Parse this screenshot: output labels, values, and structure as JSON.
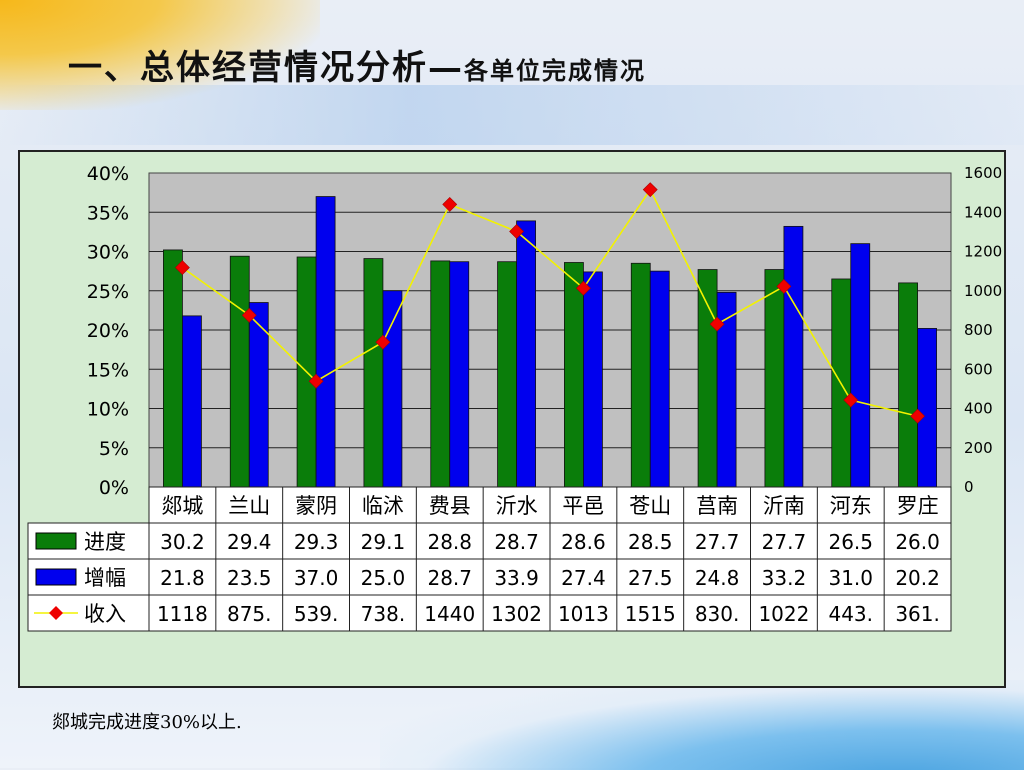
{
  "title": {
    "main": "一、总体经营情况分析",
    "dash": "—",
    "sub": "各单位完成情况"
  },
  "footnote": "郯城完成进度30%以上.",
  "chart_data": {
    "type": "bar",
    "categories": [
      "郯城",
      "兰山",
      "蒙阴",
      "临沭",
      "费县",
      "沂水",
      "平邑",
      "苍山",
      "莒南",
      "沂南",
      "河东",
      "罗庄"
    ],
    "left_axis": {
      "ylim": [
        0,
        40
      ],
      "ticks": [
        "0%",
        "5%",
        "10%",
        "15%",
        "20%",
        "25%",
        "30%",
        "35%",
        "40%"
      ]
    },
    "right_axis": {
      "ylim": [
        0,
        1600
      ],
      "ticks": [
        "0",
        "200",
        "400",
        "600",
        "800",
        "1000",
        "1200",
        "1400",
        "1600"
      ]
    },
    "grid": true,
    "legend_placement": "table-left",
    "series": [
      {
        "name": "进度",
        "kind": "bar",
        "axis": "left",
        "color": "#0a7d0a",
        "values": [
          30.2,
          29.4,
          29.3,
          29.1,
          28.8,
          28.7,
          28.6,
          28.5,
          27.7,
          27.7,
          26.5,
          26.0
        ],
        "table_values": [
          "30.2",
          "29.4",
          "29.3",
          "29.1",
          "28.8",
          "28.7",
          "28.6",
          "28.5",
          "27.7",
          "27.7",
          "26.5",
          "26.0"
        ]
      },
      {
        "name": "增幅",
        "kind": "bar",
        "axis": "left",
        "color": "#0000ee",
        "values": [
          21.8,
          23.5,
          37.0,
          25.0,
          28.7,
          33.9,
          27.4,
          27.5,
          24.8,
          33.2,
          31.0,
          20.2
        ],
        "table_values": [
          "21.8",
          "23.5",
          "37.0",
          "25.0",
          "28.7",
          "33.9",
          "27.4",
          "27.5",
          "24.8",
          "33.2",
          "31.0",
          "20.2"
        ]
      },
      {
        "name": "收入",
        "kind": "line",
        "axis": "right",
        "color": "#f2f200",
        "marker_color": "#ee0000",
        "values": [
          1118,
          875,
          539,
          738,
          1440,
          1302,
          1013,
          1515,
          830,
          1022,
          443,
          361
        ],
        "table_values": [
          "1118",
          "875.",
          "539.",
          "738.",
          "1440",
          "1302",
          "1013",
          "1515",
          "830.",
          "1022",
          "443.",
          "361."
        ]
      }
    ]
  }
}
